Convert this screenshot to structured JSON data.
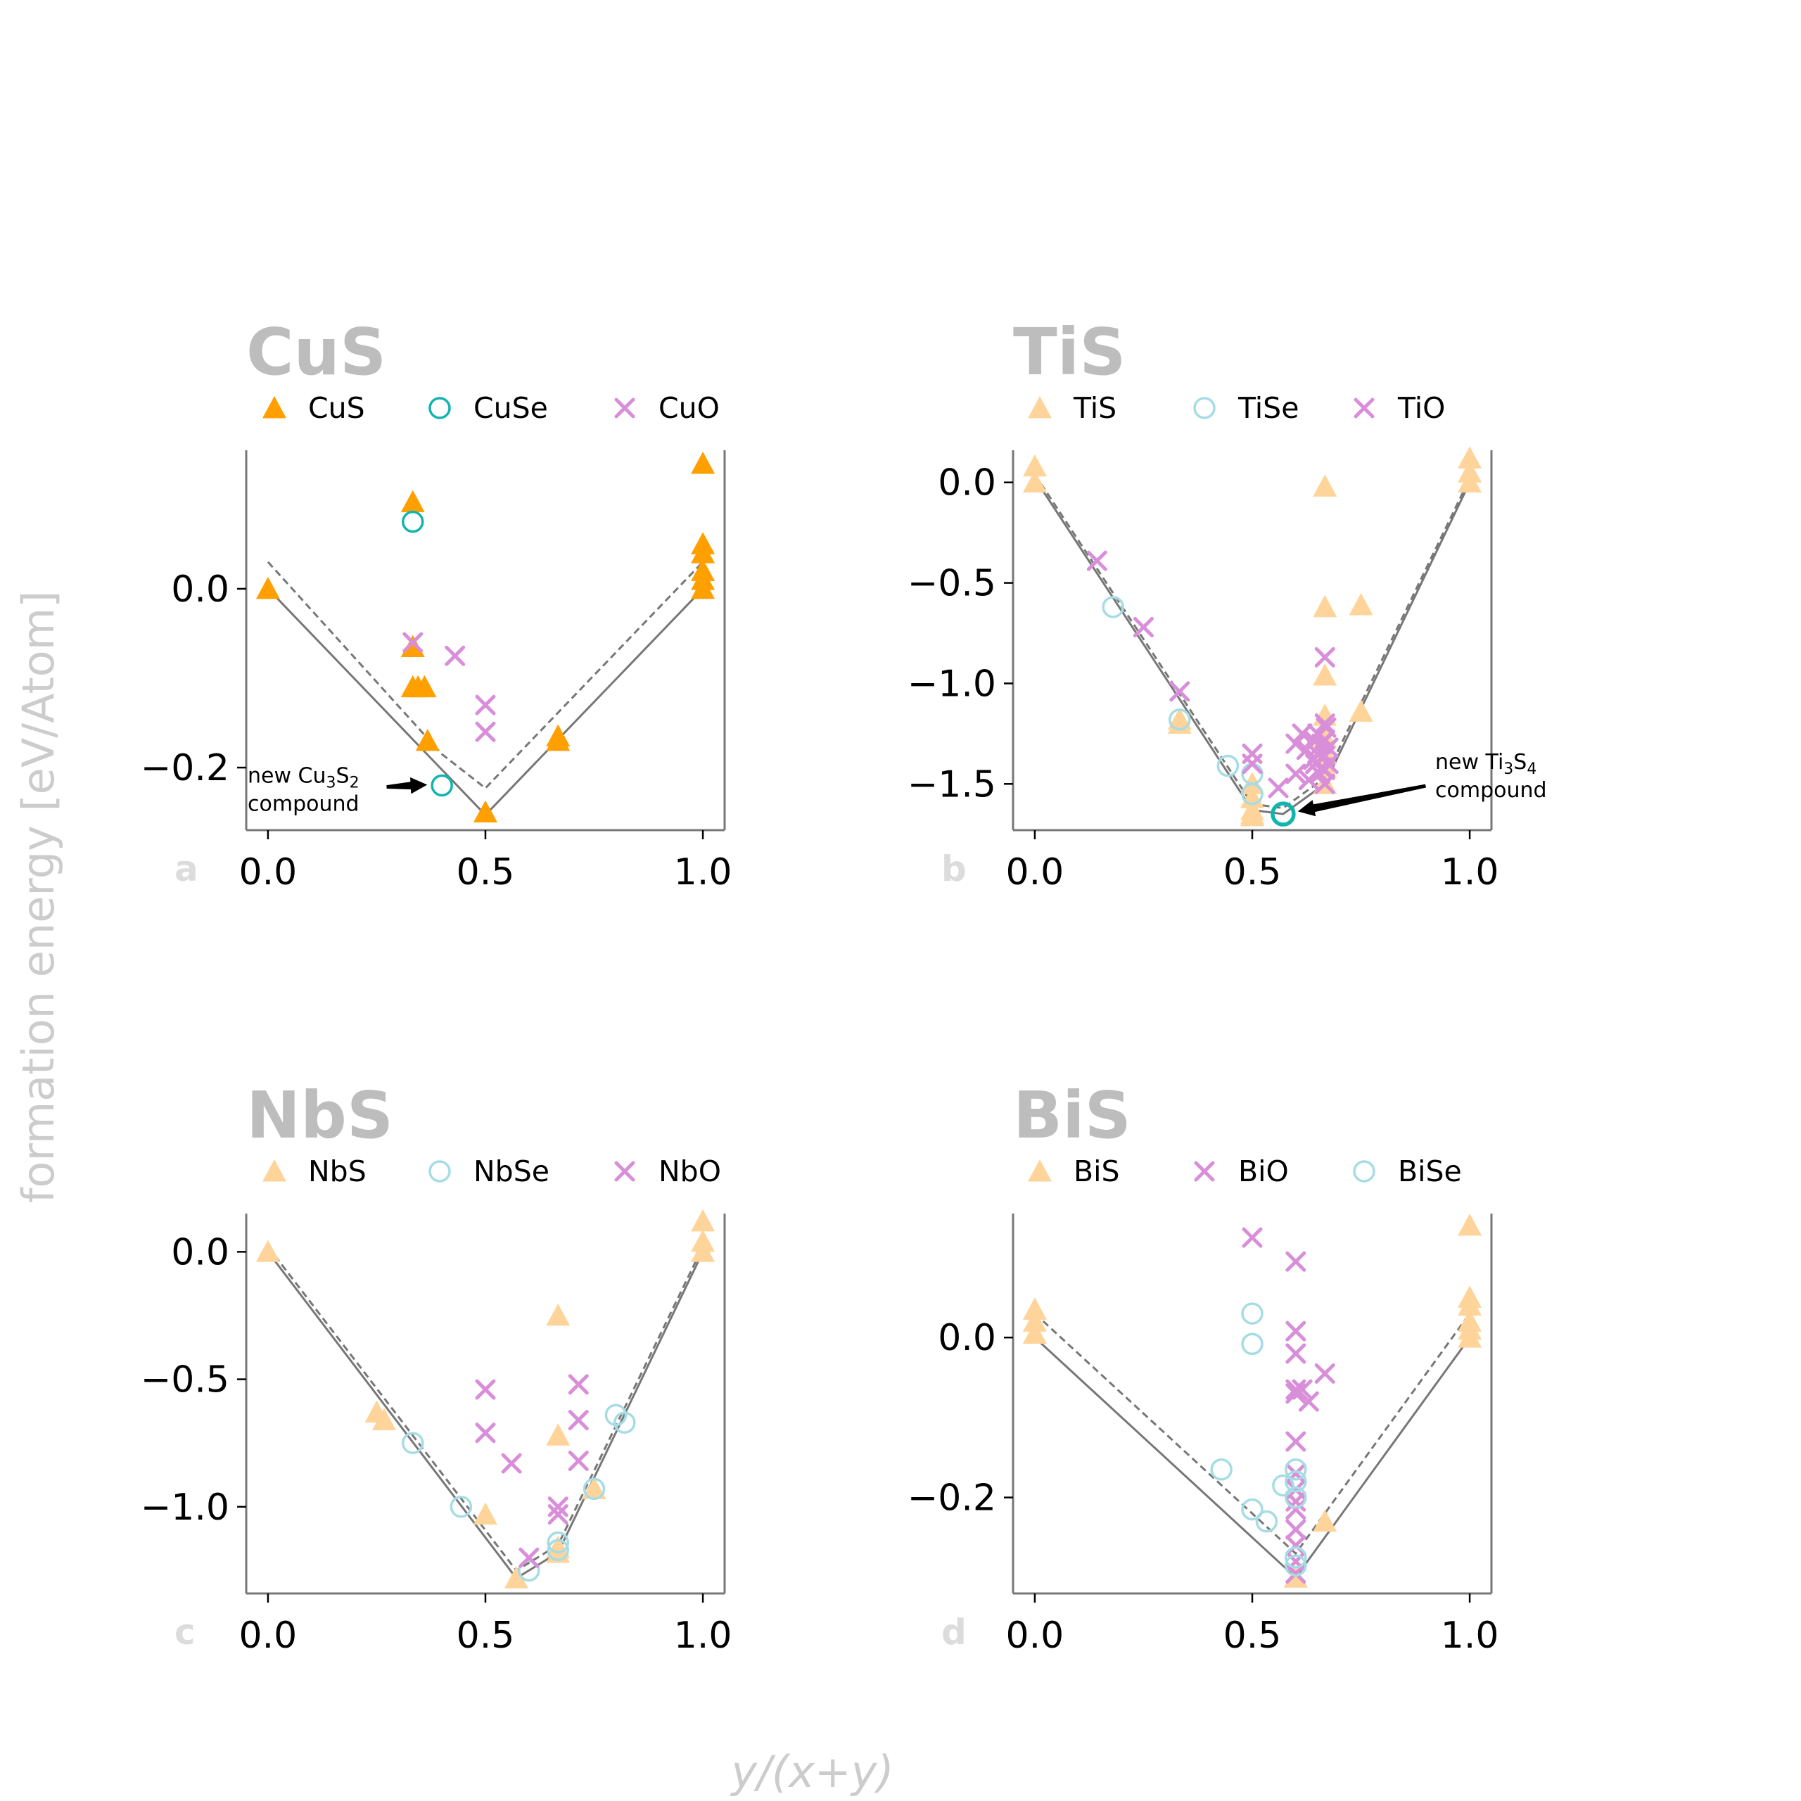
{
  "figure": {
    "ylabel": "formation energy [eV/Atom]",
    "xlabel": "y/(x+y)"
  },
  "colors": {
    "orange": "#ff9f00",
    "light_orange": "#ffd49a",
    "teal": "#11b5b0",
    "light_teal": "#a6dce4",
    "violet": "#d98ed9",
    "hull_line": "#777777",
    "spine": "#777777"
  },
  "chart_data": [
    {
      "letter": "a",
      "type": "scatter",
      "title": "CuS",
      "xlim": [
        -0.05,
        1.05
      ],
      "ylim": [
        -0.27,
        0.155
      ],
      "xticks": [
        {
          "v": 0.0,
          "label": "0.0"
        },
        {
          "v": 0.5,
          "label": "0.5"
        },
        {
          "v": 1.0,
          "label": "1.0"
        }
      ],
      "yticks": [
        {
          "v": 0.0,
          "label": "0.0"
        },
        {
          "v": -0.2,
          "label": "−0.2"
        }
      ],
      "series": [
        {
          "name": "CuS",
          "marker": "triangle",
          "color": "#ff9f00",
          "filled": true,
          "points": [
            [
              0.0,
              0.0
            ],
            [
              0.333,
              0.097
            ],
            [
              0.333,
              -0.065
            ],
            [
              0.333,
              -0.11
            ],
            [
              0.345,
              -0.11
            ],
            [
              0.36,
              -0.11
            ],
            [
              0.367,
              -0.17
            ],
            [
              0.5,
              -0.25
            ],
            [
              0.667,
              -0.165
            ],
            [
              0.667,
              -0.17
            ],
            [
              1.0,
              0.14
            ],
            [
              1.0,
              0.05
            ],
            [
              1.0,
              0.04
            ],
            [
              1.0,
              0.02
            ],
            [
              1.0,
              0.01
            ],
            [
              1.0,
              0.0
            ]
          ]
        },
        {
          "name": "CuSe",
          "marker": "circle",
          "color": "#11b5b0",
          "filled": false,
          "points": [
            [
              0.333,
              0.075
            ],
            [
              0.4,
              -0.22
            ]
          ]
        },
        {
          "name": "CuO",
          "marker": "x",
          "color": "#d98ed9",
          "filled": false,
          "points": [
            [
              0.333,
              -0.06
            ],
            [
              0.43,
              -0.075
            ],
            [
              0.5,
              -0.13
            ],
            [
              0.5,
              -0.16
            ]
          ]
        }
      ],
      "hull_solid": [
        [
          0.0,
          0.0
        ],
        [
          0.5,
          -0.253
        ],
        [
          1.0,
          0.0
        ]
      ],
      "hull_dashed": [
        [
          0.0,
          0.03
        ],
        [
          0.4,
          -0.185
        ],
        [
          0.5,
          -0.223
        ],
        [
          1.0,
          0.03
        ]
      ],
      "annotation": {
        "line1": "new Cu",
        "sub1": "3",
        "mid": "S",
        "sub2": "2",
        "line2": "compound",
        "target": [
          0.4,
          -0.22
        ]
      }
    },
    {
      "letter": "b",
      "type": "scatter",
      "title": "TiS",
      "xlim": [
        -0.05,
        1.05
      ],
      "ylim": [
        -1.73,
        0.16
      ],
      "xticks": [
        {
          "v": 0.0,
          "label": "0.0"
        },
        {
          "v": 0.5,
          "label": "0.5"
        },
        {
          "v": 1.0,
          "label": "1.0"
        }
      ],
      "yticks": [
        {
          "v": 0.0,
          "label": "0.0"
        },
        {
          "v": -0.5,
          "label": "−0.5"
        },
        {
          "v": -1.0,
          "label": "−1.0"
        },
        {
          "v": -1.5,
          "label": "−1.5"
        }
      ],
      "series": [
        {
          "name": "TiS",
          "marker": "triangle",
          "color": "#ffd49a",
          "filled": true,
          "points": [
            [
              0.0,
              0.08
            ],
            [
              0.0,
              0.0
            ],
            [
              0.333,
              -1.18
            ],
            [
              0.333,
              -1.2
            ],
            [
              0.5,
              -1.5
            ],
            [
              0.5,
              -1.57
            ],
            [
              0.5,
              -1.63
            ],
            [
              0.5,
              -1.65
            ],
            [
              0.5,
              -1.66
            ],
            [
              0.667,
              -0.02
            ],
            [
              0.667,
              -0.62
            ],
            [
              0.667,
              -0.96
            ],
            [
              0.667,
              -1.16
            ],
            [
              0.667,
              -1.27
            ],
            [
              0.667,
              -1.35
            ],
            [
              0.667,
              -1.42
            ],
            [
              0.667,
              -1.5
            ],
            [
              0.75,
              -0.61
            ],
            [
              0.75,
              -1.14
            ],
            [
              1.0,
              0.12
            ],
            [
              1.0,
              0.05
            ],
            [
              1.0,
              0.0
            ]
          ]
        },
        {
          "name": "TiSe",
          "marker": "circle",
          "color": "#a6dce4",
          "filled": false,
          "points": [
            [
              0.18,
              -0.62
            ],
            [
              0.333,
              -1.18
            ],
            [
              0.444,
              -1.41
            ],
            [
              0.5,
              -1.45
            ],
            [
              0.5,
              -1.55
            ]
          ]
        },
        {
          "name": "TiO",
          "marker": "x",
          "color": "#d98ed9",
          "filled": false,
          "points": [
            [
              0.143,
              -0.39
            ],
            [
              0.25,
              -0.72
            ],
            [
              0.333,
              -1.04
            ],
            [
              0.5,
              -1.35
            ],
            [
              0.5,
              -1.4
            ],
            [
              0.56,
              -1.52
            ],
            [
              0.6,
              -1.3
            ],
            [
              0.6,
              -1.45
            ],
            [
              0.615,
              -1.25
            ],
            [
              0.625,
              -1.33
            ],
            [
              0.63,
              -1.48
            ],
            [
              0.64,
              -1.28
            ],
            [
              0.64,
              -1.38
            ],
            [
              0.645,
              -1.4
            ],
            [
              0.65,
              -1.25
            ],
            [
              0.65,
              -1.35
            ],
            [
              0.655,
              -1.45
            ],
            [
              0.66,
              -1.3
            ],
            [
              0.66,
              -1.42
            ],
            [
              0.667,
              -0.87
            ],
            [
              0.667,
              -1.2
            ],
            [
              0.667,
              -1.28
            ],
            [
              0.667,
              -1.36
            ],
            [
              0.667,
              -1.43
            ],
            [
              0.667,
              -1.5
            ],
            [
              0.67,
              -1.22
            ],
            [
              0.675,
              -1.32
            ],
            [
              0.675,
              -1.4
            ]
          ]
        },
        {
          "name": "",
          "marker": "circle",
          "color": "#11b5b0",
          "filled": false,
          "emphasis": true,
          "points": [
            [
              0.571,
              -1.65
            ]
          ]
        }
      ],
      "hull_solid": [
        [
          0.0,
          0.02
        ],
        [
          0.5,
          -1.63
        ],
        [
          0.571,
          -1.65
        ],
        [
          0.667,
          -1.5
        ],
        [
          1.0,
          0.0
        ]
      ],
      "hull_dashed": [
        [
          0.0,
          0.04
        ],
        [
          0.5,
          -1.6
        ],
        [
          0.571,
          -1.62
        ],
        [
          0.667,
          -1.47
        ],
        [
          1.0,
          0.02
        ]
      ],
      "annotation": {
        "line1": "new Ti",
        "sub1": "3",
        "mid": "S",
        "sub2": "4",
        "line2": "compound",
        "target": [
          0.571,
          -1.65
        ]
      }
    },
    {
      "letter": "c",
      "type": "scatter",
      "title": "NbS",
      "xlim": [
        -0.05,
        1.05
      ],
      "ylim": [
        -1.34,
        0.15
      ],
      "xticks": [
        {
          "v": 0.0,
          "label": "0.0"
        },
        {
          "v": 0.5,
          "label": "0.5"
        },
        {
          "v": 1.0,
          "label": "1.0"
        }
      ],
      "yticks": [
        {
          "v": 0.0,
          "label": "0.0"
        },
        {
          "v": -0.5,
          "label": "−0.5"
        },
        {
          "v": -1.0,
          "label": "−1.0"
        }
      ],
      "series": [
        {
          "name": "NbS",
          "marker": "triangle",
          "color": "#ffd49a",
          "filled": true,
          "points": [
            [
              0.0,
              0.0
            ],
            [
              0.25,
              -0.63
            ],
            [
              0.267,
              -0.66
            ],
            [
              0.5,
              -1.03
            ],
            [
              0.571,
              -1.28
            ],
            [
              0.667,
              -0.25
            ],
            [
              0.667,
              -0.72
            ],
            [
              0.667,
              -1.16
            ],
            [
              0.667,
              -1.18
            ],
            [
              0.75,
              -0.93
            ],
            [
              1.0,
              0.12
            ],
            [
              1.0,
              0.04
            ],
            [
              1.0,
              0.0
            ]
          ]
        },
        {
          "name": "NbSe",
          "marker": "circle",
          "color": "#a6dce4",
          "filled": false,
          "points": [
            [
              0.333,
              -0.75
            ],
            [
              0.444,
              -1.0
            ],
            [
              0.6,
              -1.25
            ],
            [
              0.667,
              -1.14
            ],
            [
              0.667,
              -1.17
            ],
            [
              0.75,
              -0.93
            ],
            [
              0.8,
              -0.64
            ],
            [
              0.82,
              -0.67
            ]
          ]
        },
        {
          "name": "NbO",
          "marker": "x",
          "color": "#d98ed9",
          "filled": false,
          "points": [
            [
              0.5,
              -0.54
            ],
            [
              0.5,
              -0.71
            ],
            [
              0.56,
              -0.83
            ],
            [
              0.6,
              -1.2
            ],
            [
              0.667,
              -1.0
            ],
            [
              0.667,
              -1.03
            ],
            [
              0.714,
              -0.52
            ],
            [
              0.714,
              -0.66
            ],
            [
              0.714,
              -0.82
            ]
          ]
        }
      ],
      "hull_solid": [
        [
          0.0,
          0.0
        ],
        [
          0.571,
          -1.28
        ],
        [
          0.667,
          -1.18
        ],
        [
          1.0,
          0.0
        ]
      ],
      "hull_dashed": [
        [
          0.0,
          0.02
        ],
        [
          0.571,
          -1.25
        ],
        [
          0.667,
          -1.15
        ],
        [
          1.0,
          0.02
        ]
      ]
    },
    {
      "letter": "d",
      "type": "scatter",
      "title": "BiS",
      "xlim": [
        -0.05,
        1.05
      ],
      "ylim": [
        -0.32,
        0.155
      ],
      "xticks": [
        {
          "v": 0.0,
          "label": "0.0"
        },
        {
          "v": 0.5,
          "label": "0.5"
        },
        {
          "v": 1.0,
          "label": "1.0"
        }
      ],
      "yticks": [
        {
          "v": 0.0,
          "label": "0.0"
        },
        {
          "v": -0.2,
          "label": "−0.2"
        }
      ],
      "series": [
        {
          "name": "BiS",
          "marker": "triangle",
          "color": "#ffd49a",
          "filled": true,
          "points": [
            [
              0.0,
              0.035
            ],
            [
              0.0,
              0.02
            ],
            [
              0.0,
              0.005
            ],
            [
              0.6,
              -0.3
            ],
            [
              0.667,
              -0.23
            ],
            [
              1.0,
              0.14
            ],
            [
              1.0,
              0.05
            ],
            [
              1.0,
              0.04
            ],
            [
              1.0,
              0.02
            ],
            [
              1.0,
              0.01
            ],
            [
              1.0,
              0.0
            ]
          ]
        },
        {
          "name": "BiO",
          "marker": "x",
          "color": "#d98ed9",
          "filled": false,
          "points": [
            [
              0.5,
              0.125
            ],
            [
              0.6,
              0.095
            ],
            [
              0.6,
              0.008
            ],
            [
              0.6,
              -0.02
            ],
            [
              0.6,
              -0.065
            ],
            [
              0.6,
              -0.07
            ],
            [
              0.6,
              -0.13
            ],
            [
              0.6,
              -0.17
            ],
            [
              0.6,
              -0.19
            ],
            [
              0.6,
              -0.205
            ],
            [
              0.6,
              -0.215
            ],
            [
              0.6,
              -0.24
            ],
            [
              0.6,
              -0.26
            ],
            [
              0.6,
              -0.28
            ],
            [
              0.6,
              -0.295
            ],
            [
              0.615,
              -0.065
            ],
            [
              0.63,
              -0.08
            ],
            [
              0.667,
              -0.045
            ]
          ]
        },
        {
          "name": "BiSe",
          "marker": "circle",
          "color": "#a6dce4",
          "filled": false,
          "points": [
            [
              0.429,
              -0.165
            ],
            [
              0.5,
              0.03
            ],
            [
              0.5,
              -0.008
            ],
            [
              0.5,
              -0.215
            ],
            [
              0.533,
              -0.23
            ],
            [
              0.571,
              -0.185
            ],
            [
              0.6,
              -0.165
            ],
            [
              0.6,
              -0.18
            ],
            [
              0.6,
              -0.2
            ],
            [
              0.6,
              -0.275
            ],
            [
              0.6,
              -0.285
            ]
          ]
        }
      ],
      "hull_solid": [
        [
          0.0,
          0.0
        ],
        [
          0.6,
          -0.3
        ],
        [
          1.0,
          0.0
        ]
      ],
      "hull_dashed": [
        [
          0.0,
          0.03
        ],
        [
          0.6,
          -0.27
        ],
        [
          1.0,
          0.03
        ]
      ]
    }
  ]
}
